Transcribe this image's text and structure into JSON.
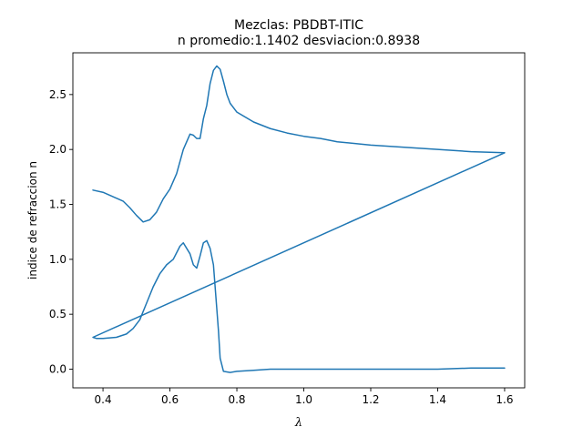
{
  "chart_data": {
    "type": "line",
    "title": "Mezclas: PBDBT-ITIC",
    "subtitle": "n promedio:1.1402 desviacion:0.8938",
    "xlabel": "λ",
    "ylabel": "indice de refraccion n",
    "xlim": [
      0.31,
      1.66
    ],
    "ylim": [
      -0.17,
      2.88
    ],
    "xticks": [
      "0.4",
      "0.6",
      "0.8",
      "1.0",
      "1.2",
      "1.4",
      "1.6"
    ],
    "xtick_values": [
      0.4,
      0.6,
      0.8,
      1.0,
      1.2,
      1.4,
      1.6
    ],
    "yticks": [
      "0.0",
      "0.5",
      "1.0",
      "1.5",
      "2.0",
      "2.5"
    ],
    "ytick_values": [
      0.0,
      0.5,
      1.0,
      1.5,
      2.0,
      2.5
    ],
    "grid": false,
    "series": [
      {
        "color": "#1f77b4",
        "x": [
          0.37,
          0.4,
          0.43,
          0.46,
          0.48,
          0.5,
          0.52,
          0.54,
          0.56,
          0.58,
          0.6,
          0.62,
          0.64,
          0.66,
          0.67,
          0.68,
          0.69,
          0.7,
          0.71,
          0.72,
          0.73,
          0.74,
          0.75,
          0.76,
          0.77,
          0.78,
          0.8,
          0.85,
          0.9,
          0.95,
          1.0,
          1.05,
          1.1,
          1.2,
          1.3,
          1.4,
          1.5,
          1.6,
          1.6,
          0.37,
          0.38,
          0.4,
          0.44,
          0.47,
          0.49,
          0.51,
          0.53,
          0.55,
          0.57,
          0.59,
          0.61,
          0.63,
          0.64,
          0.66,
          0.67,
          0.68,
          0.69,
          0.7,
          0.71,
          0.72,
          0.73,
          0.74,
          0.745,
          0.75,
          0.76,
          0.78,
          0.8,
          0.85,
          0.9,
          1.0,
          1.1,
          1.2,
          1.3,
          1.4,
          1.5,
          1.6
        ],
        "y": [
          1.63,
          1.61,
          1.57,
          1.53,
          1.47,
          1.4,
          1.34,
          1.36,
          1.43,
          1.55,
          1.64,
          1.78,
          2.0,
          2.14,
          2.13,
          2.1,
          2.1,
          2.28,
          2.4,
          2.6,
          2.72,
          2.76,
          2.73,
          2.62,
          2.5,
          2.42,
          2.34,
          2.25,
          2.19,
          2.15,
          2.12,
          2.1,
          2.07,
          2.04,
          2.02,
          2.0,
          1.98,
          1.97,
          1.97,
          0.29,
          0.28,
          0.28,
          0.29,
          0.32,
          0.37,
          0.45,
          0.6,
          0.75,
          0.87,
          0.95,
          1.0,
          1.12,
          1.15,
          1.05,
          0.95,
          0.92,
          1.03,
          1.15,
          1.17,
          1.1,
          0.95,
          0.55,
          0.35,
          0.1,
          -0.02,
          -0.03,
          -0.02,
          -0.01,
          0.0,
          0.0,
          0.0,
          0.0,
          0.0,
          0.0,
          0.01,
          0.01
        ]
      }
    ]
  }
}
